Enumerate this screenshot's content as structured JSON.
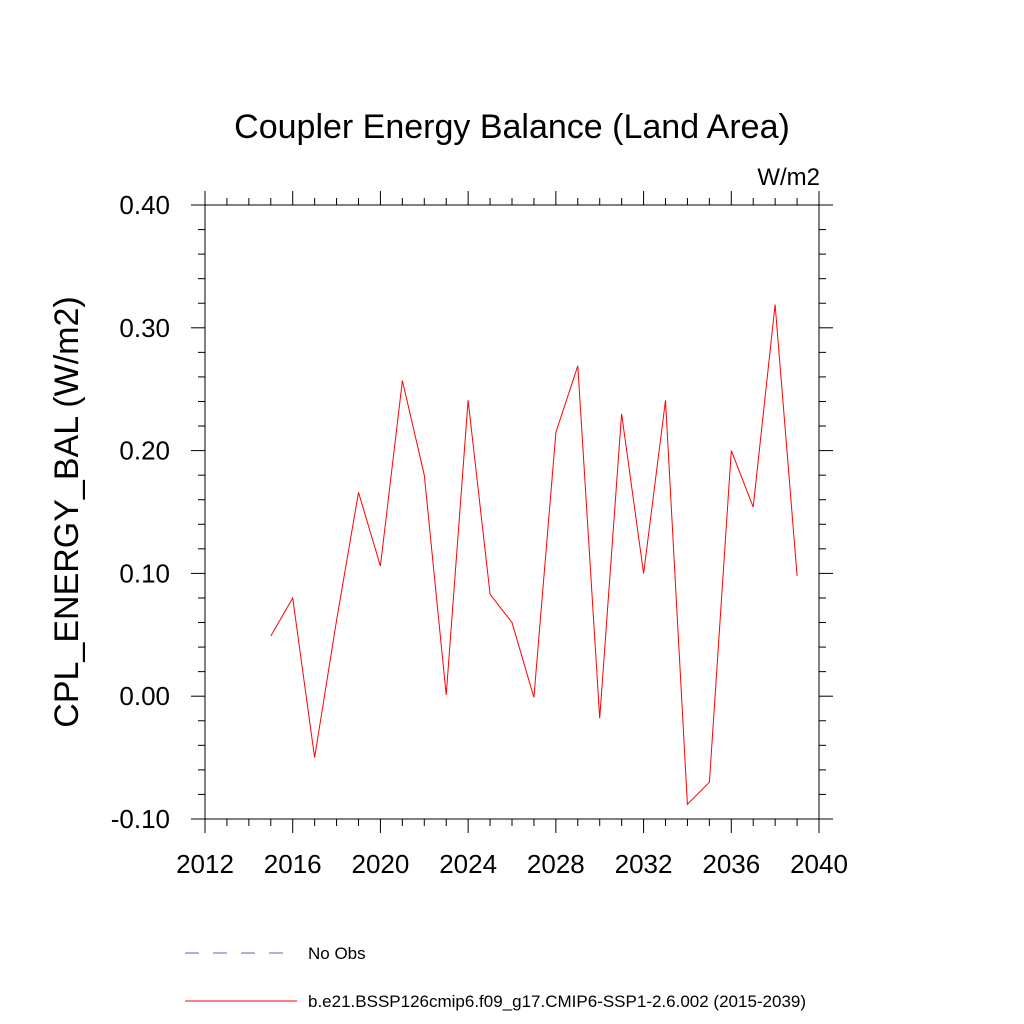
{
  "chart_data": {
    "type": "line",
    "title": "Coupler Energy Balance (Land Area)",
    "units": "W/m2",
    "xlabel": "",
    "ylabel": "CPL_ENERGY_BAL  (W/m2)",
    "xlim": [
      2012,
      2040
    ],
    "ylim": [
      -0.1,
      0.4
    ],
    "x_ticks": [
      2012,
      2016,
      2020,
      2024,
      2028,
      2032,
      2036,
      2040
    ],
    "x_tick_labels": [
      "2012",
      "2016",
      "2020",
      "2024",
      "2028",
      "2032",
      "2036",
      "2040"
    ],
    "y_ticks": [
      -0.1,
      0.0,
      0.1,
      0.2,
      0.3,
      0.4
    ],
    "y_tick_labels": [
      "-0.10",
      "0.00",
      "0.10",
      "0.20",
      "0.30",
      "0.40"
    ],
    "grid": false,
    "series": [
      {
        "name": "b.e21.BSSP126cmip6.f09_g17.CMIP6-SSP1-2.6.002 (2015-2039)",
        "color": "#ff0000",
        "style": "solid",
        "x": [
          2015,
          2016,
          2017,
          2018,
          2019,
          2020,
          2021,
          2022,
          2023,
          2024,
          2025,
          2026,
          2027,
          2028,
          2029,
          2030,
          2031,
          2032,
          2033,
          2034,
          2035,
          2036,
          2037,
          2038,
          2039
        ],
        "values": [
          0.049,
          0.08,
          -0.05,
          0.062,
          0.166,
          0.106,
          0.257,
          0.18,
          0.001,
          0.241,
          0.083,
          0.06,
          -0.001,
          0.215,
          0.269,
          -0.018,
          0.23,
          0.1,
          0.241,
          -0.088,
          -0.07,
          0.2,
          0.154,
          0.319,
          0.098
        ]
      }
    ],
    "legend": [
      {
        "label": "No Obs",
        "color": "#6a5acd",
        "style": "dashed"
      },
      {
        "label": "b.e21.BSSP126cmip6.f09_g17.CMIP6-SSP1-2.6.002 (2015-2039)",
        "color": "#ff0000",
        "style": "solid"
      }
    ],
    "legend_position": "bottom"
  }
}
